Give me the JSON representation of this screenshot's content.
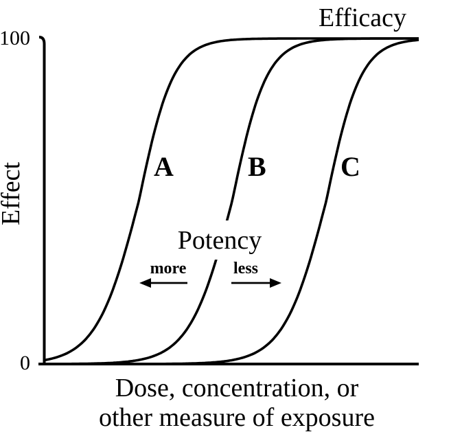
{
  "colors": {
    "ink": "#000000",
    "background": "#ffffff"
  },
  "chart_data": {
    "type": "line",
    "subtype": "dose-response-sigmoid",
    "title": "",
    "ylabel": "Effect",
    "xlabel_lines": [
      "Dose, concentration, or",
      "other measure of exposure"
    ],
    "ylim": [
      0,
      100
    ],
    "yticks": [
      0,
      100
    ],
    "ytick_labels": [
      "0",
      "100"
    ],
    "xticks": [],
    "grid": false,
    "legend": "none",
    "series": [
      {
        "name": "A",
        "max_effect": 100,
        "ec50_frac": 0.253,
        "width_frac_upper": 0.0458,
        "width_frac_lower": 0.0568
      },
      {
        "name": "B",
        "max_effect": 100,
        "ec50_frac": 0.502,
        "width_frac_upper": 0.0458,
        "width_frac_lower": 0.0568
      },
      {
        "name": "C",
        "max_effect": 100,
        "ec50_frac": 0.753,
        "width_frac_upper": 0.0458,
        "width_frac_lower": 0.0568
      }
    ],
    "annotations": {
      "efficacy": "Efficacy",
      "potency": "Potency",
      "more": "more",
      "less": "less"
    }
  }
}
